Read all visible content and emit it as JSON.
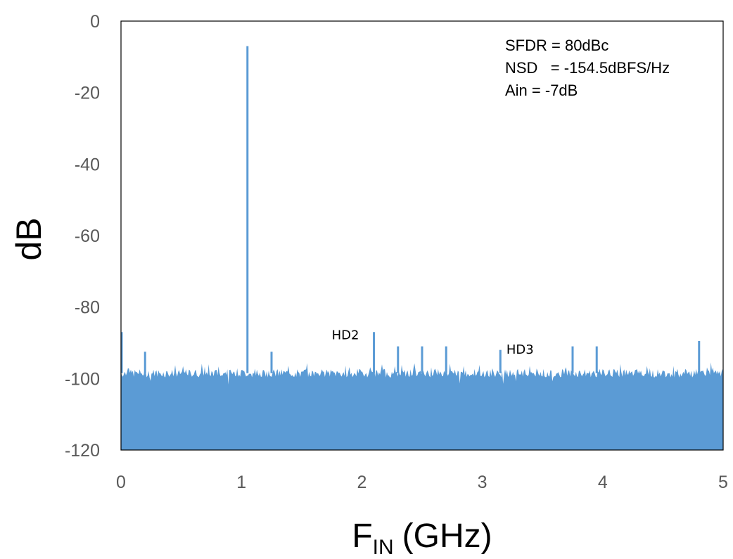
{
  "chart_data": {
    "type": "area",
    "xlabel_main": "F",
    "xlabel_sub": "IN",
    "xlabel_unit": "(GHz)",
    "ylabel": "dB",
    "xlim": [
      0,
      5
    ],
    "ylim": [
      -120,
      0
    ],
    "xticks": [
      "0",
      "1",
      "2",
      "3",
      "4",
      "5"
    ],
    "yticks": [
      "0",
      "-20",
      "-40",
      "-60",
      "-80",
      "-100",
      "-120"
    ],
    "grid": false,
    "fill_color": "#5b9bd5",
    "annotations": [
      "SFDR = 80dBc",
      "NSD   = -154.5dBFS/Hz",
      "Ain = -7dB"
    ],
    "harmonic_labels": [
      {
        "text": "HD2",
        "x": 1.75,
        "y": -89
      },
      {
        "text": "HD3",
        "x": 3.2,
        "y": -93
      }
    ],
    "noise_floor_db": -98.5,
    "spurs": [
      {
        "x": 0.0,
        "y": -87
      },
      {
        "x": 0.2,
        "y": -92.5
      },
      {
        "x": 1.05,
        "y": -7
      },
      {
        "x": 1.25,
        "y": -92.5
      },
      {
        "x": 2.1,
        "y": -87
      },
      {
        "x": 2.3,
        "y": -91
      },
      {
        "x": 2.5,
        "y": -91
      },
      {
        "x": 2.7,
        "y": -91
      },
      {
        "x": 3.15,
        "y": -92
      },
      {
        "x": 3.75,
        "y": -91
      },
      {
        "x": 3.95,
        "y": -91
      },
      {
        "x": 4.8,
        "y": -89.5
      }
    ]
  }
}
